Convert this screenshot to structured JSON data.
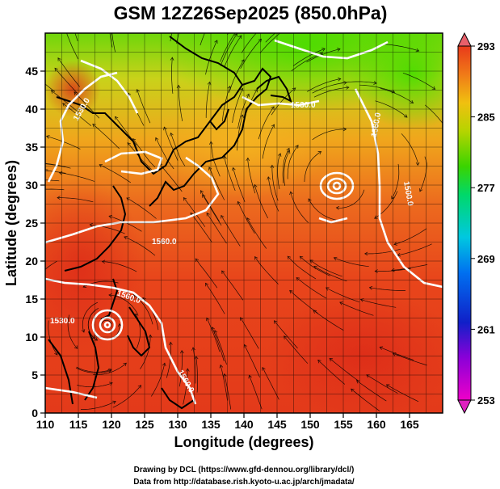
{
  "title": "GSM 12Z26Sep2025 (850.0hPa)",
  "xlabel": "Longitude (degrees)",
  "ylabel": "Latitude  (degrees)",
  "credits": [
    "Drawing by DCL (https://www.gfd-dennou.org/library/dcl/)",
    "Data from http://database.rish.kyoto-u.ac.jp/arch/jmadata/"
  ],
  "contour_labels": [
    "1530.0",
    "1560.0",
    "1560.0",
    "1530.0",
    "1560.0",
    "1500.0",
    "1560.0",
    "1530.0"
  ],
  "chart_data": {
    "type": "heatmap",
    "x_range": [
      110,
      170
    ],
    "y_range": [
      0,
      50
    ],
    "x_ticks": [
      110,
      115,
      120,
      125,
      130,
      135,
      140,
      145,
      150,
      155,
      160,
      165
    ],
    "y_ticks": [
      0,
      5,
      10,
      15,
      20,
      25,
      30,
      35,
      40,
      45
    ],
    "grid": true,
    "colorbar": {
      "ticks": [
        253,
        261,
        269,
        277,
        285,
        293
      ],
      "range": [
        253,
        293
      ]
    },
    "overlays": [
      "streamlines",
      "geopotential height contours",
      "coastlines"
    ]
  },
  "colors": {
    "warm": "#e83b1a",
    "mid": "#f29a1c",
    "cool": "#3fd400",
    "contour": "#ffffff"
  }
}
